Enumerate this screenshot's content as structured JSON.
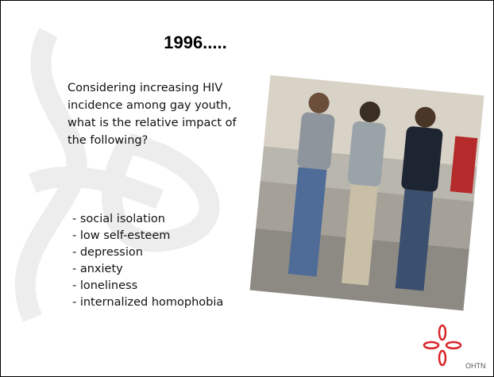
{
  "slide": {
    "title": "1996.....",
    "intro": "Considering increasing HIV incidence among gay youth, what is the relative impact of the following?",
    "items": [
      "- social isolation",
      "- low self-esteem",
      "- depression",
      "- anxiety",
      "- loneliness",
      "- internalized homophobia"
    ],
    "logo": "OHTN"
  }
}
